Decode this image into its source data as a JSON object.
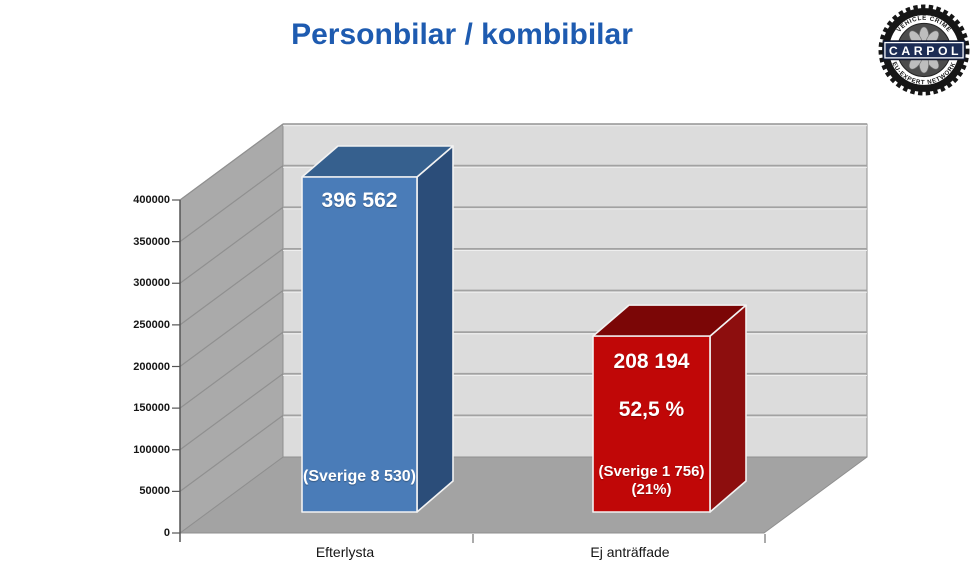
{
  "title": "Personbilar / kombibilar",
  "logo": {
    "name": "CARPOL",
    "top_text": "VEHICLE CRIME",
    "bottom_text": "EU-EXPERT NETWORK",
    "band_color": "#1c2c54",
    "tire_color": "#161616"
  },
  "colors": {
    "title": "#1e5bb0",
    "back_wall": "#dcdcdc",
    "side_wall": "#aaaaaa",
    "floor": "#a3a3a3",
    "gridline": "#a2a2a2",
    "grid_highlight": "#f2f2f2",
    "wall_diagonal": "#909090",
    "edge": "#8f8f8f",
    "axis": "#555555",
    "bar_edge": "#f2f2f2"
  },
  "chart_data": {
    "type": "bar",
    "style": "3d",
    "title": "Personbilar / kombibilar",
    "grid": true,
    "legend": false,
    "categories": [
      "Efterlysta",
      "Ej anträffade"
    ],
    "series": [
      {
        "category": "Efterlysta",
        "value": 396562,
        "value_label": "396 562",
        "sublabels": [
          "(Sverige 8 530)"
        ],
        "colors": {
          "front": "#4a7cb8",
          "top": "#36608e",
          "side": "#2b4d79"
        }
      },
      {
        "category": "Ej anträffade",
        "value": 208194,
        "value_label": "208 194",
        "percent_label": "52,5 %",
        "sublabels": [
          "(Sverige 1 756)",
          "(21%)"
        ],
        "colors": {
          "front": "#c00707",
          "top": "#7b0606",
          "side": "#8d0e0e"
        }
      }
    ],
    "y_axis": {
      "min": 0,
      "max": 400000,
      "step": 50000,
      "tick_labels": [
        "0",
        "50000",
        "100000",
        "150000",
        "200000",
        "250000",
        "300000",
        "350000",
        "400000"
      ]
    }
  }
}
